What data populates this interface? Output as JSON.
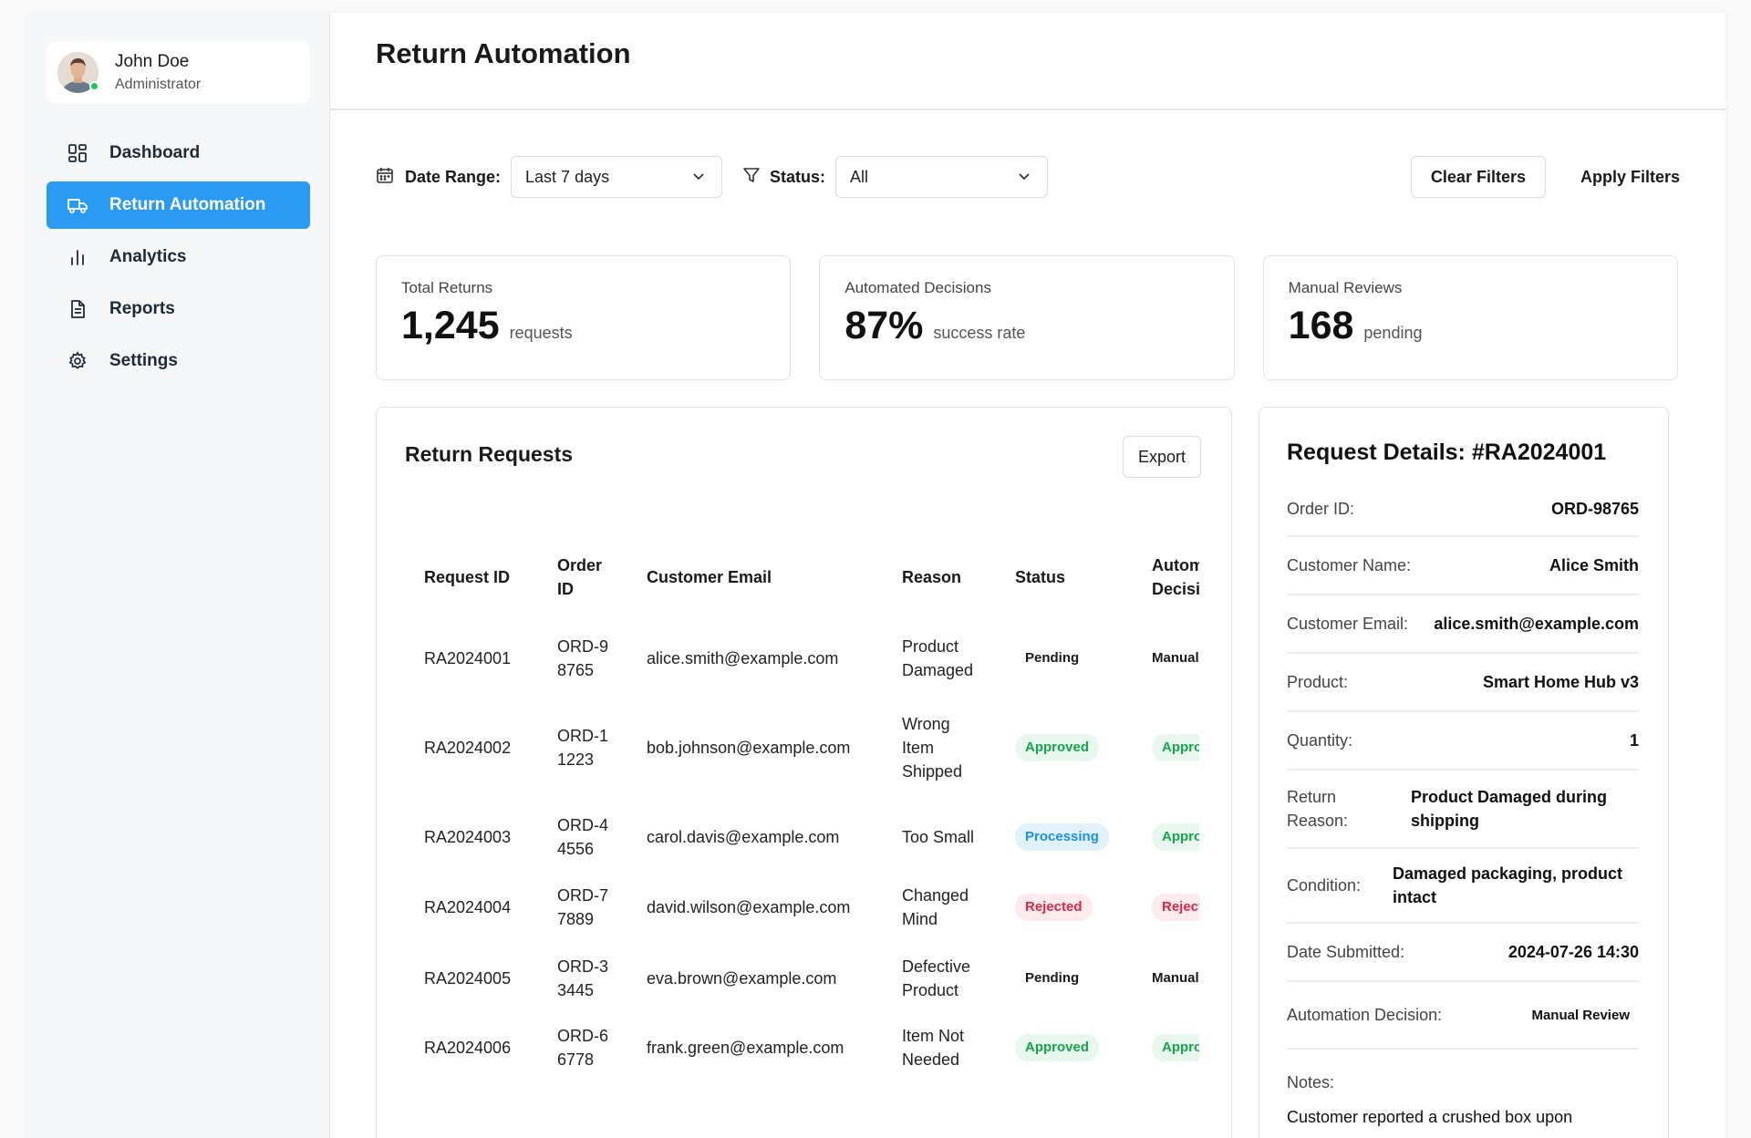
{
  "user": {
    "name": "John Doe",
    "role": "Administrator"
  },
  "nav": [
    {
      "label": "Dashboard",
      "icon": "dashboard-icon",
      "active": false
    },
    {
      "label": "Return Automation",
      "icon": "truck-icon",
      "active": true
    },
    {
      "label": "Analytics",
      "icon": "bar-chart-icon",
      "active": false
    },
    {
      "label": "Reports",
      "icon": "document-icon",
      "active": false
    },
    {
      "label": "Settings",
      "icon": "gear-icon",
      "active": false
    }
  ],
  "page": {
    "title": "Return Automation"
  },
  "filters": {
    "date_label": "Date Range:",
    "date_value": "Last 7 days",
    "status_label": "Status:",
    "status_value": "All",
    "clear_label": "Clear Filters",
    "apply_label": "Apply Filters"
  },
  "stats": [
    {
      "label": "Total Returns",
      "value": "1,245",
      "unit": "requests"
    },
    {
      "label": "Automated Decisions",
      "value": "87%",
      "unit": "success rate"
    },
    {
      "label": "Manual Reviews",
      "value": "168",
      "unit": "pending"
    }
  ],
  "requests": {
    "title": "Return Requests",
    "export_label": "Export",
    "columns": [
      "Request ID",
      "Order ID",
      "Customer Email",
      "Reason",
      "Status",
      "Automation Decision"
    ],
    "rows": [
      {
        "id": "RA2024001",
        "order": "ORD-98765",
        "email": "alice.smith@example.com",
        "reason": "Product Damaged",
        "status": "Pending",
        "decision": "Manual Review"
      },
      {
        "id": "RA2024002",
        "order": "ORD-11223",
        "email": "bob.johnson@example.com",
        "reason": "Wrong Item Shipped",
        "status": "Approved",
        "decision": "Approved"
      },
      {
        "id": "RA2024003",
        "order": "ORD-44556",
        "email": "carol.davis@example.com",
        "reason": "Too Small",
        "status": "Processing",
        "decision": "Approved"
      },
      {
        "id": "RA2024004",
        "order": "ORD-77889",
        "email": "david.wilson@example.com",
        "reason": "Changed Mind",
        "status": "Rejected",
        "decision": "Rejected"
      },
      {
        "id": "RA2024005",
        "order": "ORD-33445",
        "email": "eva.brown@example.com",
        "reason": "Defective Product",
        "status": "Pending",
        "decision": "Manual Review"
      },
      {
        "id": "RA2024006",
        "order": "ORD-66778",
        "email": "frank.green@example.com",
        "reason": "Item Not Needed",
        "status": "Approved",
        "decision": "Approved"
      }
    ]
  },
  "details": {
    "title": "Request Details: #RA2024001",
    "fields": [
      {
        "key": "Order ID:",
        "value": "ORD-98765"
      },
      {
        "key": "Customer Name:",
        "value": "Alice Smith"
      },
      {
        "key": "Customer Email:",
        "value": "alice.smith@example.com"
      },
      {
        "key": "Product:",
        "value": "Smart Home Hub v3"
      },
      {
        "key": "Quantity:",
        "value": "1"
      },
      {
        "key": "Return Reason:",
        "value": "Product Damaged during shipping"
      },
      {
        "key": "Condition:",
        "value": "Damaged packaging, product intact"
      },
      {
        "key": "Date Submitted:",
        "value": "2024-07-26 14:30"
      },
      {
        "key": "Automation Decision:",
        "value": "Manual Review"
      }
    ],
    "notes_label": "Notes:",
    "notes_text": "Customer reported a crushed box upon"
  },
  "colors": {
    "accent": "#2b9af3",
    "approved": "#16a34a",
    "processing": "#1d90e6",
    "rejected": "#dc2646",
    "online": "#22c55e"
  }
}
